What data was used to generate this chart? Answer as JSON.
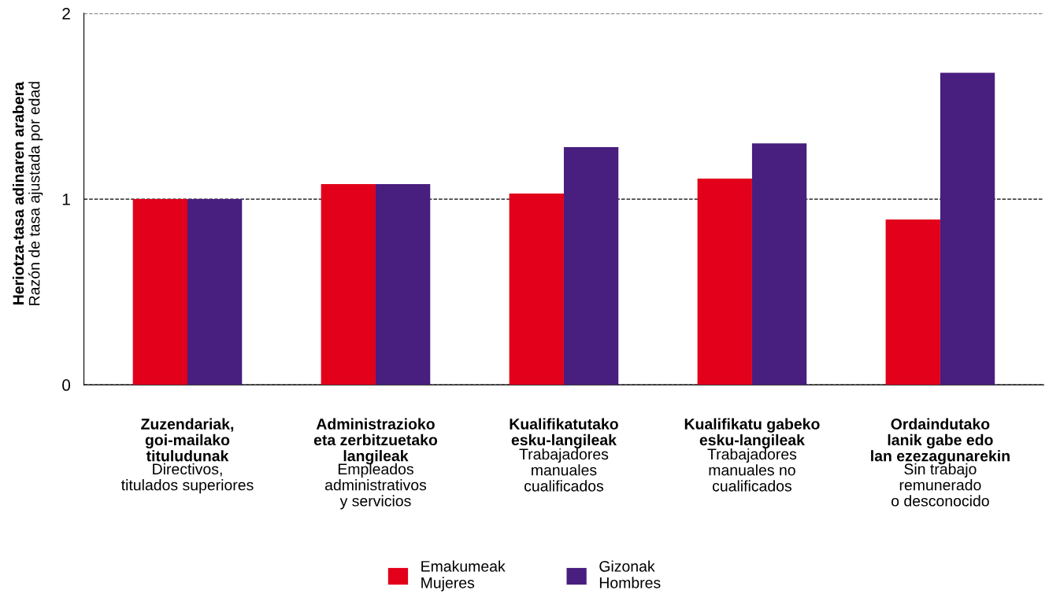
{
  "chart_data": {
    "type": "bar",
    "ylabel": "Heriotza-tasa adinaren arabera\nRazón de tasa ajustada por edad",
    "categories": [
      "Zuzendariak,\ngoi-mailako\ntituludunak\n\nDirectivos,\ntitulados superiores",
      "Administrazioko\neta zerbitzuetako\nlangileak\n\nEmpleados\nadministrativos\ny servicios",
      "Kualifikatutako\nesku-langileak\n\nTrabajadores\nmanuales\ncualificados",
      "Kualifikatu gabeko\nesku-langileak\n\nTrabajadores\nmanuales no\ncualificados",
      "Ordaindutako\nlanik gabe edo\nlan ezezagunarekin\n\nSin trabajo\nremunerado\no desconocido"
    ],
    "series": [
      {
        "name": "Emakumeak\nMujeres",
        "color": "#e2001a",
        "values": [
          1.0,
          1.08,
          1.03,
          1.11,
          0.89
        ]
      },
      {
        "name": "Gizonak\nHombres",
        "color": "#481e7f",
        "values": [
          1.0,
          1.08,
          1.28,
          1.3,
          1.68
        ]
      }
    ],
    "ylim": [
      0,
      2
    ],
    "yticks": [
      0,
      1,
      2
    ],
    "grid": "y",
    "legend": "bottom"
  }
}
